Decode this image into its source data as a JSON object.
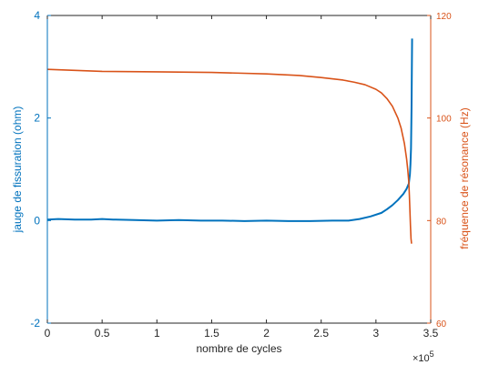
{
  "chart_data": {
    "type": "line",
    "title": "",
    "xlabel": "nombre de cycles",
    "x_exponent_label": "×10",
    "x_exponent": "5",
    "xlim": [
      0,
      3.5
    ],
    "x_scale_note": "×10^5",
    "x_ticks": [
      0,
      0.5,
      1,
      1.5,
      2,
      2.5,
      3,
      3.5
    ],
    "x_tick_labels": [
      "0",
      "0.5",
      "1",
      "1.5",
      "2",
      "2.5",
      "3",
      "3.5"
    ],
    "grid": true,
    "left_axis": {
      "label": "jauge de fissuration (ohm)",
      "color": "#0072BD",
      "ylim": [
        -2,
        4
      ],
      "ticks": [
        -2,
        0,
        2,
        4
      ],
      "tick_labels": [
        "-2",
        "0",
        "2",
        "4"
      ]
    },
    "right_axis": {
      "label": "fréquence de résonance (Hz)",
      "color": "#D95319",
      "ylim": [
        60,
        120
      ],
      "ticks": [
        60,
        80,
        100,
        120
      ],
      "tick_labels": [
        "60",
        "80",
        "100",
        "120"
      ]
    },
    "series": [
      {
        "axis": "left",
        "color": "#0072BD",
        "x": [
          0,
          0.1,
          0.25,
          0.4,
          0.5,
          0.6,
          0.8,
          1.0,
          1.2,
          1.4,
          1.6,
          1.8,
          2.0,
          2.2,
          2.4,
          2.6,
          2.75,
          2.85,
          2.95,
          3.05,
          3.1,
          3.15,
          3.2,
          3.25,
          3.28,
          3.3,
          3.31,
          3.315,
          3.32,
          3.325,
          3.33
        ],
        "y": [
          0.02,
          0.03,
          0.02,
          0.02,
          0.03,
          0.02,
          0.01,
          0.0,
          0.01,
          0.0,
          0.0,
          -0.01,
          0.0,
          -0.01,
          -0.01,
          0.0,
          0.0,
          0.03,
          0.08,
          0.15,
          0.22,
          0.3,
          0.4,
          0.52,
          0.62,
          0.72,
          0.9,
          1.1,
          1.4,
          2.2,
          3.55
        ]
      },
      {
        "axis": "right",
        "color": "#D95319",
        "x": [
          0,
          0.5,
          1.0,
          1.5,
          2.0,
          2.3,
          2.5,
          2.7,
          2.8,
          2.9,
          3.0,
          3.05,
          3.1,
          3.15,
          3.2,
          3.23,
          3.26,
          3.28,
          3.29,
          3.3,
          3.305,
          3.31,
          3.315,
          3.32,
          3.325
        ],
        "y": [
          109.5,
          109.1,
          109.0,
          108.9,
          108.6,
          108.3,
          107.9,
          107.4,
          107.0,
          106.5,
          105.6,
          104.9,
          103.8,
          102.3,
          100.0,
          98.0,
          95.0,
          92.0,
          90.0,
          87.5,
          85.0,
          82.0,
          79.0,
          76.5,
          75.5
        ]
      }
    ]
  }
}
